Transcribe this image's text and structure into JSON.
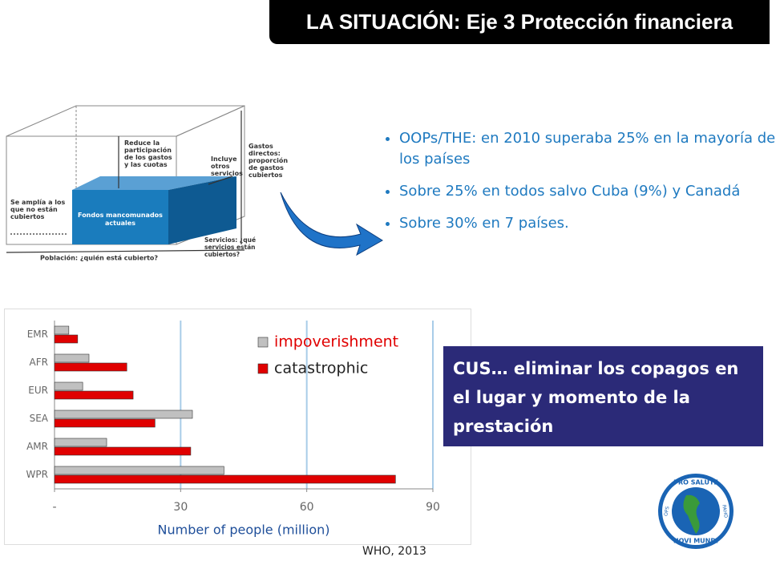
{
  "title": "LA SITUACIÓN: Eje 3 Protección financiera",
  "diagram": {
    "reduce": [
      "Reduce la",
      "participación",
      "de los gastos",
      "y las cuotas"
    ],
    "incluye": [
      "Incluye",
      "otros",
      "servicios"
    ],
    "gastos": [
      "Gastos",
      "directos:",
      "proporción",
      "de gastos",
      "cubiertos"
    ],
    "amplia": [
      "Se amplía a los",
      "que no están",
      "cubiertos"
    ],
    "fondos": [
      "Fondos mancomunados",
      "actuales"
    ],
    "poblacion": "Población: ¿quién está cubierto?",
    "servicios": [
      "Servicios: ¿qué",
      "servicios están",
      "cubiertos?"
    ]
  },
  "bullets": [
    "OOPs/THE:  en 2010 superaba 25% en la mayoría de los países",
    "Sobre 25% en todos salvo Cuba (9%) y Canadá",
    "Sobre 30% en 7 países."
  ],
  "callout": "CUS… eliminar los copagos en el lugar y momento de la prestación",
  "source": "WHO, 2013",
  "logo": {
    "top": "PRO SALUTE",
    "bottom": "NOVI MUNDI",
    "left": "OPS",
    "right": "PAHO"
  },
  "chart_data": {
    "type": "hbar",
    "categories": [
      "EMR",
      "AFR",
      "EUR",
      "SEA",
      "AMR",
      "WPR"
    ],
    "series": [
      {
        "name": "impoverishment",
        "color": "#c0c0c0",
        "values": [
          3.4,
          8.2,
          6.7,
          32.8,
          12.4,
          40.3
        ]
      },
      {
        "name": "catastrophic",
        "color": "#e00000",
        "values": [
          5.5,
          17.2,
          18.7,
          23.9,
          32.4,
          81.1
        ]
      }
    ],
    "xlabel": "Number of people (million)",
    "xlim": [
      0,
      90
    ],
    "xticks": [
      {
        "value": 0,
        "label": "-"
      },
      30,
      60,
      90
    ],
    "grid": true
  }
}
